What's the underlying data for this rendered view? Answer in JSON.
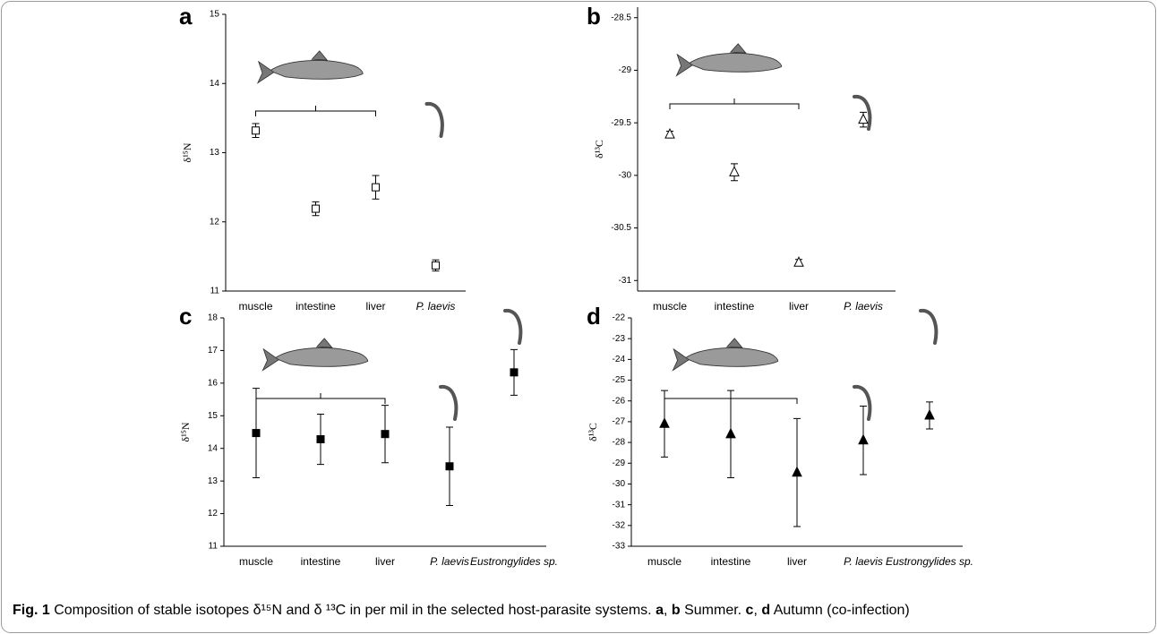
{
  "chart_data": [
    {
      "type": "errorbar",
      "label": "a",
      "y_label": "δ¹⁵N",
      "marker": "open-square",
      "color": "#000000",
      "categories": [
        "muscle",
        "intestine",
        "liver",
        "P. laevis"
      ],
      "values": [
        13.32,
        12.19,
        12.5,
        11.37
      ],
      "errors": [
        0.1,
        0.1,
        0.17,
        0.08
      ],
      "ylim": [
        11,
        15
      ],
      "yticks": [
        11,
        12,
        13,
        14,
        15
      ]
    },
    {
      "type": "errorbar",
      "label": "b",
      "y_label": "δ¹³C",
      "marker": "open-triangle",
      "color": "#000000",
      "categories": [
        "muscle",
        "intestine",
        "liver",
        "P. laevis"
      ],
      "values": [
        -29.61,
        -29.97,
        -30.83,
        -29.47
      ],
      "errors": [
        0.03,
        0.08,
        0.03,
        0.07
      ],
      "ylim": [
        -31.1,
        -28.4
      ],
      "yticks": [
        -31.0,
        -30.5,
        -30.0,
        -29.5,
        -29.0,
        -28.5
      ]
    },
    {
      "type": "errorbar",
      "label": "c",
      "y_label": "δ¹⁵N",
      "marker": "filled-square",
      "color": "#000000",
      "categories": [
        "muscle",
        "intestine",
        "liver",
        "P. laevis",
        "Eustrongylides sp."
      ],
      "values": [
        14.47,
        14.28,
        14.44,
        13.45,
        16.33
      ],
      "errors": [
        1.37,
        0.77,
        0.88,
        1.2,
        0.7
      ],
      "ylim": [
        11,
        18
      ],
      "yticks": [
        11,
        12,
        13,
        14,
        15,
        16,
        17,
        18
      ]
    },
    {
      "type": "errorbar",
      "label": "d",
      "y_label": "δ¹³C",
      "marker": "filled-triangle",
      "color": "#000000",
      "categories": [
        "muscle",
        "intestine",
        "liver",
        "P. laevis",
        "Eustrongylides sp."
      ],
      "values": [
        -27.1,
        -27.6,
        -29.45,
        -27.9,
        -26.7
      ],
      "errors": [
        1.6,
        2.1,
        2.6,
        1.65,
        0.65
      ],
      "ylim": [
        -33,
        -22
      ],
      "yticks": [
        -33,
        -32,
        -31,
        -30,
        -29,
        -28,
        -27,
        -26,
        -25,
        -24,
        -23,
        -22
      ]
    }
  ],
  "caption": [
    {
      "text": "Fig. 1",
      "bold": true
    },
    {
      "text": " Composition of stable isotopes δ¹⁵N and δ ¹³C in per mil in the selected host-parasite systems. ",
      "bold": false
    },
    {
      "text": "a",
      "bold": true
    },
    {
      "text": ", ",
      "bold": false
    },
    {
      "text": "b",
      "bold": true
    },
    {
      "text": " Summer. ",
      "bold": false
    },
    {
      "text": "c",
      "bold": true
    },
    {
      "text": ", ",
      "bold": false
    },
    {
      "text": "d",
      "bold": true
    },
    {
      "text": " Autumn (co-infection)",
      "bold": false
    }
  ]
}
